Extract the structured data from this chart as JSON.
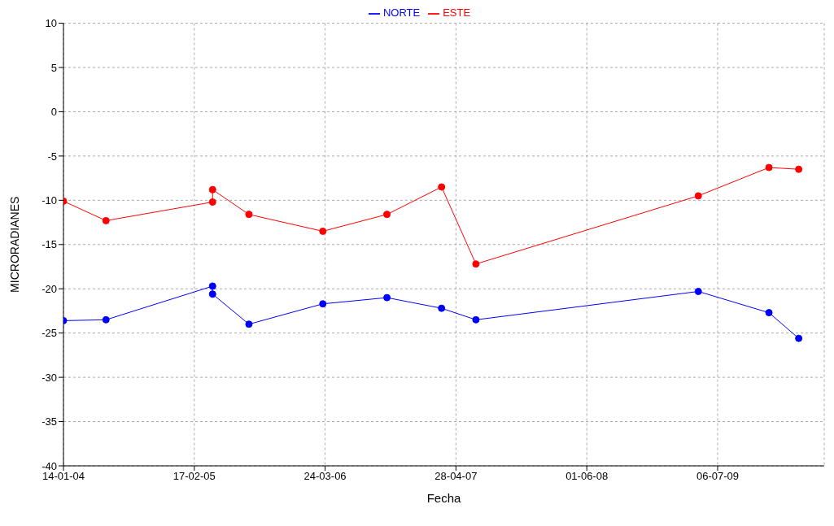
{
  "chart_data": {
    "type": "line",
    "xlabel": "Fecha",
    "ylabel": "MICRORADIANES",
    "x": [
      "2004-01-14",
      "2004-05-23",
      "2005-04-14",
      "2005-04-14",
      "2005-08-03",
      "2006-03-17",
      "2006-09-29",
      "2007-03-15",
      "2007-06-28",
      "2009-05-08",
      "2009-12-10",
      "2010-03-11"
    ],
    "series": [
      {
        "name": "NORTE",
        "color": "#0000ff",
        "values": [
          -23.6,
          -23.5,
          -19.7,
          -20.6,
          -24.0,
          -21.7,
          -21.0,
          -22.2,
          -23.5,
          -20.3,
          -22.7,
          -25.6
        ]
      },
      {
        "name": "ESTE",
        "color": "#ff0000",
        "values": [
          -10.1,
          -12.3,
          -10.2,
          -8.8,
          -11.6,
          -13.5,
          -11.6,
          -8.5,
          -17.2,
          -9.5,
          -6.3,
          -6.5
        ]
      }
    ],
    "xlim": [
      "2004-01-14",
      "2010-05-28"
    ],
    "xticks": [
      {
        "value": "2004-01-14",
        "label": "14-01-04"
      },
      {
        "value": "2005-02-17",
        "label": "17-02-05"
      },
      {
        "value": "2006-03-24",
        "label": "24-03-06"
      },
      {
        "value": "2007-04-28",
        "label": "28-04-07"
      },
      {
        "value": "2008-06-01",
        "label": "01-06-08"
      },
      {
        "value": "2009-07-06",
        "label": "06-07-09"
      }
    ],
    "ylim": [
      -40,
      10
    ],
    "yticks": [
      -40,
      -35,
      -30,
      -25,
      -20,
      -15,
      -10,
      -5,
      0,
      5,
      10
    ],
    "grid": true,
    "legend": "top",
    "marker": "circle",
    "line_style": "solid"
  }
}
